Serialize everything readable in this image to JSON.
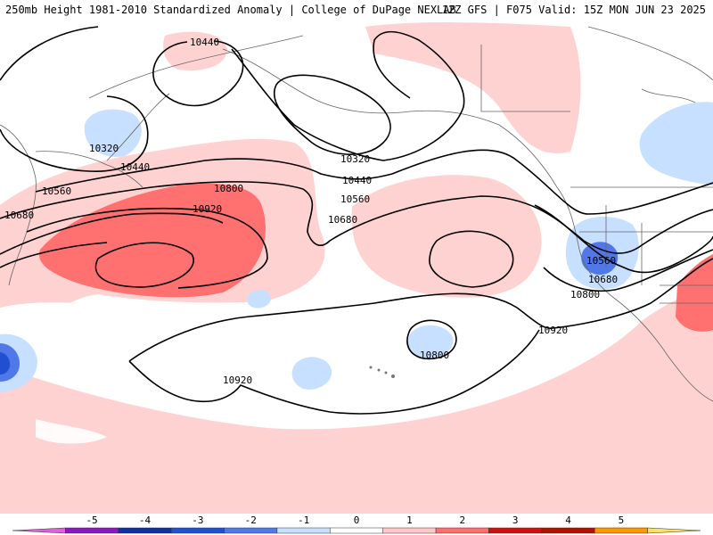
{
  "header": {
    "left_title": "250mb Height 1981-2010 Standardized Anomaly | College of DuPage NEXLAB",
    "right_title": "12Z GFS | F075 Valid: 15Z MON JUN 23 2025"
  },
  "contours": {
    "labels": [
      "10440",
      "10320",
      "10440",
      "10560",
      "10680",
      "10800",
      "10920",
      "10320",
      "10440",
      "10560",
      "10680",
      "10560",
      "10680",
      "10800",
      "10920",
      "10800",
      "10920"
    ]
  },
  "colorbar": {
    "ticks": [
      "-5",
      "-4",
      "-3",
      "-2",
      "-1",
      "0",
      "1",
      "2",
      "3",
      "4",
      "5"
    ],
    "colors": [
      "#e060e0",
      "#8a18c0",
      "#1030a0",
      "#2050d0",
      "#4f78e8",
      "#c8e0ff",
      "#ffffff",
      "#ffc8c8",
      "#ff7070",
      "#d01010",
      "#b01000",
      "#ff9800",
      "#ffe060"
    ]
  },
  "anomaly_colors": {
    "weak_positive": "#ffd2d2",
    "moderate_positive": "#ff7070",
    "weak_negative": "#c8e0ff",
    "moderate_negative": "#5078e8",
    "strong_negative": "#2050d0"
  }
}
